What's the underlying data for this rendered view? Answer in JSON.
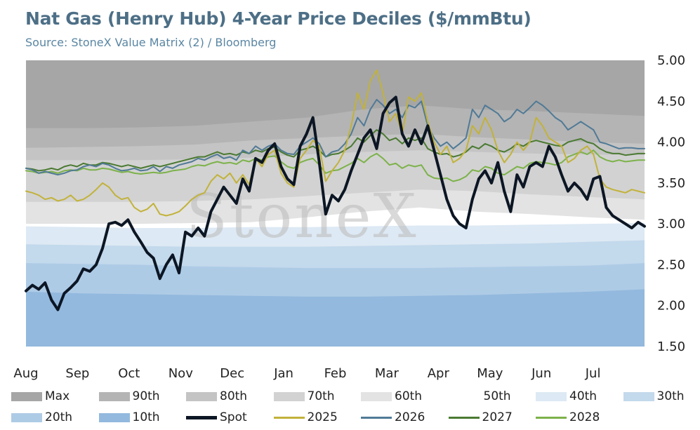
{
  "title": "Nat Gas (Henry Hub) 4-Year Price Deciles ($/mmBtu)",
  "subtitle": "Source: StoneX Value Matrix (2) / Bloomberg",
  "watermark": "StoneX",
  "chart_data": {
    "type": "area",
    "x_axis": {
      "type": "month",
      "labels": [
        "Aug",
        "Sep",
        "Oct",
        "Nov",
        "Dec",
        "Jan",
        "Feb",
        "Mar",
        "Apr",
        "May",
        "Jun",
        "Jul"
      ]
    },
    "y_axis": {
      "position": "right",
      "ylim": [
        1.5,
        5.0
      ],
      "ticks": [
        "5.00",
        "4.50",
        "4.00",
        "3.50",
        "3.00",
        "2.50",
        "2.00",
        "1.50"
      ]
    },
    "bands": [
      {
        "name": "Max",
        "color": "#a6a6a6",
        "values": [
          5.0,
          5.0,
          5.0,
          5.0,
          5.0,
          5.0,
          5.0,
          5.0,
          5.0,
          5.0,
          5.0,
          5.0
        ]
      },
      {
        "name": "90th",
        "color": "#b4b4b4",
        "values": [
          4.17,
          4.17,
          4.18,
          4.2,
          4.25,
          4.3,
          4.4,
          4.45,
          4.4,
          4.38,
          4.35,
          4.32
        ]
      },
      {
        "name": "80th",
        "color": "#c4c4c4",
        "values": [
          3.93,
          3.94,
          3.95,
          3.97,
          4.02,
          4.05,
          4.08,
          4.1,
          4.06,
          4.03,
          4.0,
          3.98
        ]
      },
      {
        "name": "70th",
        "color": "#d2d2d2",
        "values": [
          3.78,
          3.78,
          3.78,
          3.79,
          3.81,
          3.85,
          3.88,
          3.9,
          3.88,
          3.86,
          3.85,
          3.84
        ]
      },
      {
        "name": "60th",
        "color": "#e3e3e3",
        "values": [
          3.27,
          3.27,
          3.27,
          3.28,
          3.3,
          3.34,
          3.38,
          3.42,
          3.4,
          3.36,
          3.33,
          3.3
        ]
      },
      {
        "name": "50th",
        "color": "#ffffff",
        "values": [
          3.0,
          3.0,
          3.0,
          3.01,
          3.02,
          3.08,
          3.15,
          3.2,
          3.15,
          3.12,
          3.08,
          3.05
        ]
      },
      {
        "name": "40th",
        "color": "#dde9f4",
        "values": [
          2.97,
          2.96,
          2.95,
          2.95,
          2.96,
          2.96,
          2.97,
          2.98,
          2.98,
          2.99,
          3.0,
          3.01
        ]
      },
      {
        "name": "30th",
        "color": "#c3d9ec",
        "values": [
          2.75,
          2.74,
          2.73,
          2.72,
          2.72,
          2.72,
          2.73,
          2.74,
          2.75,
          2.76,
          2.78,
          2.8
        ]
      },
      {
        "name": "20th",
        "color": "#aecbe6",
        "values": [
          2.52,
          2.51,
          2.5,
          2.48,
          2.47,
          2.46,
          2.46,
          2.46,
          2.47,
          2.48,
          2.49,
          2.52
        ]
      },
      {
        "name": "10th",
        "color": "#93b9de",
        "values": [
          2.17,
          2.15,
          2.14,
          2.13,
          2.12,
          2.11,
          2.11,
          2.12,
          2.13,
          2.15,
          2.17,
          2.2
        ]
      }
    ],
    "series": [
      {
        "name": "Spot",
        "color": "#0c1624",
        "width": 4,
        "values": [
          2.18,
          2.25,
          2.2,
          2.28,
          2.07,
          1.95,
          2.15,
          2.22,
          2.3,
          2.45,
          2.42,
          2.5,
          2.7,
          3.0,
          3.02,
          2.98,
          3.05,
          2.9,
          2.78,
          2.65,
          2.58,
          2.33,
          2.5,
          2.62,
          2.4,
          2.9,
          2.85,
          2.95,
          2.85,
          3.15,
          3.3,
          3.45,
          3.35,
          3.25,
          3.55,
          3.4,
          3.8,
          3.75,
          3.9,
          3.98,
          3.7,
          3.55,
          3.48,
          3.95,
          4.1,
          4.3,
          3.75,
          3.12,
          3.35,
          3.28,
          3.42,
          3.65,
          3.85,
          4.05,
          4.15,
          3.92,
          4.35,
          4.48,
          4.55,
          4.1,
          3.95,
          4.15,
          3.98,
          4.2,
          3.9,
          3.6,
          3.3,
          3.1,
          3.0,
          2.95,
          3.3,
          3.55,
          3.65,
          3.5,
          3.75,
          3.4,
          3.15,
          3.6,
          3.45,
          3.7,
          3.75,
          3.7,
          3.95,
          3.82,
          3.6,
          3.4,
          3.5,
          3.42,
          3.3,
          3.55,
          3.58,
          3.2,
          3.1,
          3.05,
          3.0,
          2.95,
          3.02,
          2.97
        ]
      },
      {
        "name": "2025",
        "color": "#c2b23a",
        "width": 2,
        "values": [
          3.4,
          3.38,
          3.35,
          3.3,
          3.32,
          3.28,
          3.3,
          3.35,
          3.28,
          3.3,
          3.35,
          3.42,
          3.5,
          3.45,
          3.35,
          3.3,
          3.32,
          3.2,
          3.15,
          3.18,
          3.25,
          3.12,
          3.1,
          3.12,
          3.15,
          3.22,
          3.3,
          3.35,
          3.38,
          3.52,
          3.6,
          3.55,
          3.62,
          3.5,
          3.6,
          3.48,
          3.8,
          3.7,
          3.85,
          3.9,
          3.62,
          3.5,
          3.45,
          3.8,
          3.9,
          4.02,
          3.95,
          3.52,
          3.65,
          3.75,
          3.9,
          4.2,
          4.6,
          4.4,
          4.75,
          4.88,
          4.6,
          4.25,
          4.35,
          4.1,
          4.55,
          4.5,
          4.6,
          4.25,
          4.0,
          3.85,
          3.95,
          3.75,
          3.8,
          3.9,
          4.2,
          4.1,
          4.3,
          4.15,
          3.9,
          3.75,
          3.85,
          4.0,
          3.9,
          4.0,
          4.3,
          4.2,
          4.05,
          4.0,
          3.95,
          3.75,
          3.8,
          3.9,
          3.95,
          3.85,
          3.55,
          3.45,
          3.42,
          3.4,
          3.38,
          3.42,
          3.4,
          3.38
        ]
      },
      {
        "name": "2026",
        "color": "#507a96",
        "width": 2,
        "values": [
          3.68,
          3.66,
          3.62,
          3.64,
          3.62,
          3.6,
          3.62,
          3.65,
          3.66,
          3.7,
          3.72,
          3.7,
          3.74,
          3.72,
          3.68,
          3.65,
          3.66,
          3.68,
          3.65,
          3.66,
          3.7,
          3.64,
          3.7,
          3.68,
          3.72,
          3.74,
          3.76,
          3.8,
          3.78,
          3.82,
          3.85,
          3.8,
          3.82,
          3.78,
          3.9,
          3.86,
          3.95,
          3.9,
          3.95,
          3.98,
          3.9,
          3.86,
          3.85,
          3.95,
          4.0,
          4.05,
          3.98,
          3.82,
          3.88,
          3.9,
          3.98,
          4.1,
          4.3,
          4.2,
          4.4,
          4.52,
          4.45,
          4.35,
          4.4,
          4.3,
          4.45,
          4.42,
          4.5,
          4.2,
          4.05,
          3.95,
          4.0,
          3.92,
          3.98,
          4.05,
          4.4,
          4.3,
          4.45,
          4.4,
          4.35,
          4.25,
          4.3,
          4.4,
          4.35,
          4.42,
          4.5,
          4.45,
          4.38,
          4.3,
          4.25,
          4.15,
          4.2,
          4.25,
          4.2,
          4.15,
          4.0,
          3.98,
          3.95,
          3.92,
          3.93,
          3.93,
          3.92,
          3.92
        ]
      },
      {
        "name": "2027",
        "color": "#4b7a32",
        "width": 2,
        "values": [
          3.68,
          3.67,
          3.65,
          3.66,
          3.68,
          3.66,
          3.7,
          3.72,
          3.7,
          3.74,
          3.72,
          3.72,
          3.75,
          3.74,
          3.72,
          3.7,
          3.72,
          3.7,
          3.68,
          3.7,
          3.72,
          3.7,
          3.72,
          3.74,
          3.76,
          3.78,
          3.8,
          3.82,
          3.82,
          3.85,
          3.88,
          3.85,
          3.86,
          3.84,
          3.88,
          3.86,
          3.9,
          3.88,
          3.92,
          3.94,
          3.88,
          3.84,
          3.82,
          3.9,
          3.92,
          3.95,
          3.9,
          3.82,
          3.85,
          3.86,
          3.9,
          3.95,
          4.05,
          4.0,
          4.08,
          4.15,
          4.1,
          4.02,
          4.05,
          3.98,
          4.05,
          4.02,
          4.05,
          3.92,
          3.88,
          3.85,
          3.86,
          3.82,
          3.84,
          3.88,
          3.95,
          3.92,
          3.98,
          3.95,
          3.9,
          3.88,
          3.92,
          3.98,
          3.95,
          4.0,
          4.02,
          4.0,
          3.98,
          3.96,
          3.95,
          4.0,
          4.02,
          4.04,
          4.0,
          3.98,
          3.92,
          3.88,
          3.86,
          3.86,
          3.84,
          3.85,
          3.86,
          3.86
        ]
      },
      {
        "name": "2028",
        "color": "#7db24a",
        "width": 2,
        "values": [
          3.65,
          3.64,
          3.62,
          3.63,
          3.64,
          3.62,
          3.65,
          3.66,
          3.65,
          3.68,
          3.66,
          3.66,
          3.68,
          3.67,
          3.65,
          3.63,
          3.64,
          3.62,
          3.61,
          3.62,
          3.63,
          3.62,
          3.63,
          3.65,
          3.66,
          3.67,
          3.7,
          3.72,
          3.71,
          3.74,
          3.76,
          3.74,
          3.75,
          3.73,
          3.78,
          3.76,
          3.8,
          3.78,
          3.82,
          3.83,
          3.76,
          3.7,
          3.68,
          3.75,
          3.78,
          3.8,
          3.72,
          3.62,
          3.65,
          3.66,
          3.7,
          3.74,
          3.8,
          3.75,
          3.82,
          3.86,
          3.8,
          3.72,
          3.74,
          3.68,
          3.72,
          3.7,
          3.72,
          3.6,
          3.56,
          3.55,
          3.56,
          3.52,
          3.54,
          3.58,
          3.66,
          3.64,
          3.7,
          3.68,
          3.62,
          3.6,
          3.65,
          3.7,
          3.68,
          3.74,
          3.76,
          3.75,
          3.74,
          3.72,
          3.75,
          3.82,
          3.85,
          3.88,
          3.85,
          3.9,
          3.82,
          3.78,
          3.76,
          3.78,
          3.76,
          3.77,
          3.78,
          3.78
        ]
      }
    ],
    "legend": {
      "position": "bottom",
      "entries": [
        "Max",
        "90th",
        "80th",
        "70th",
        "60th",
        "50th",
        "40th",
        "30th",
        "20th",
        "10th",
        "Spot",
        "2025",
        "2026",
        "2027",
        "2028"
      ]
    }
  }
}
